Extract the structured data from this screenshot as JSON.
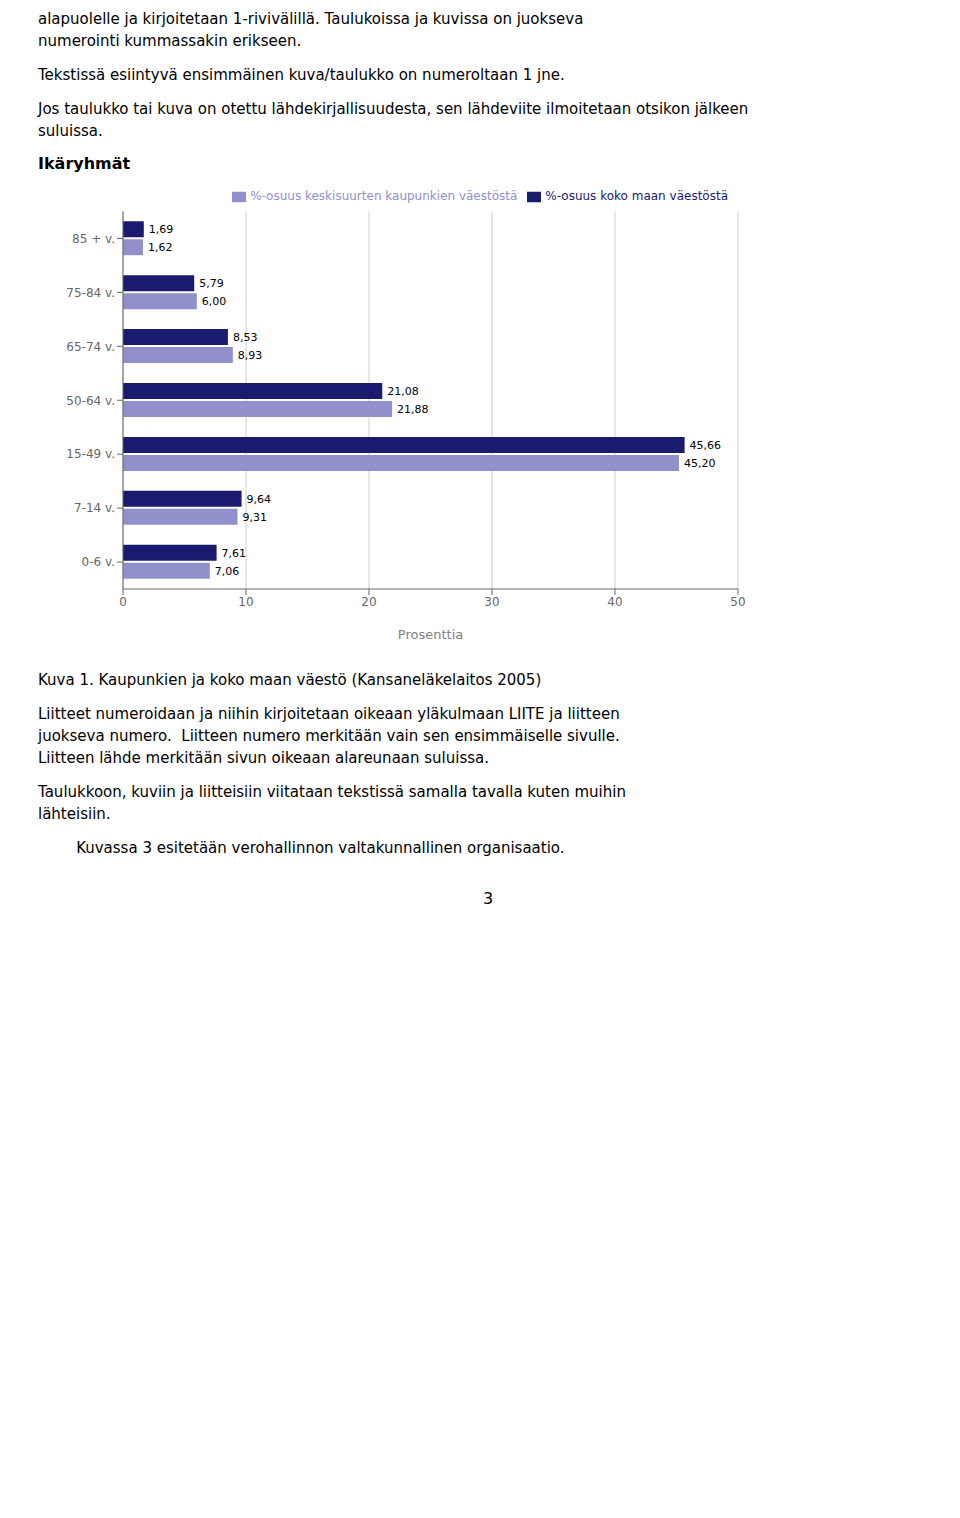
{
  "chart_data": {
    "type": "bar",
    "orientation": "horizontal",
    "title": "Ikäryhmät",
    "categories": [
      "85 + v.",
      "75-84 v.",
      "65-74 v.",
      "50-64 v.",
      "15-49 v.",
      "7-14 v.",
      "0-6 v."
    ],
    "series": [
      {
        "name": "%-osuus koko maan väestöstä",
        "color": "#1a1a6e",
        "values": [
          1.69,
          5.79,
          8.53,
          21.08,
          45.66,
          9.64,
          7.61
        ],
        "value_labels": [
          "1,69",
          "5,79",
          "8,53",
          "21,08",
          "45,66",
          "9,64",
          "7,61"
        ]
      },
      {
        "name": "%-osuus keskisuurten kaupunkien väestöstä",
        "color": "#9090cc",
        "values": [
          1.62,
          6.0,
          8.93,
          21.88,
          45.2,
          9.31,
          7.06
        ],
        "value_labels": [
          "1,62",
          "6,00",
          "8,93",
          "21,88",
          "45,20",
          "9,31",
          "7,06"
        ]
      }
    ],
    "xlabel": "Prosenttia",
    "xlim": [
      0,
      50
    ],
    "xticks": [
      0,
      10,
      20,
      30,
      40,
      50
    ],
    "grid": true,
    "legend": "upper right",
    "data_labels": true
  },
  "text_before": [
    [
      "alapuolelle ja kirjoitetaan 1-rivivälillä. Taulukoissa ja kuvissa on juokseva",
      "numerointi kummassakin erikseen."
    ],
    [
      "Tekstissä esiintyvä ensimmäinen kuva/taulukko on numeroltaan 1 jne."
    ],
    [
      "Jos taulukko tai kuva on otettu lähdekirjallisuudesta, sen lähdeviite ilmoitetaan otsikon jälkeen",
      "suluissa."
    ]
  ],
  "caption": "Kuva 1. Kaupunkien ja koko maan väestö (Kansaneläkelaitos 2005)",
  "text_after": [
    [
      "Liitteet numeroidaan ja niihin kirjoitetaan oikeaan yläkulmaan LIITE ja liitteen",
      "juokseva numero.  Liitteen numero merkitään vain sen ensimmäiselle sivulle.",
      "Liitteen lähde merkitään sivun oikeaan alareunaan suluissa."
    ],
    [
      "Taulukkoon, kuviin ja liitteisiin viitataan tekstissä samalla tavalla kuten muihin",
      "lähteisiin."
    ],
    [
      "        Kuvassa 3 esitetään verohallinnon valtakunnallinen organisaatio."
    ]
  ],
  "page_number": "3"
}
